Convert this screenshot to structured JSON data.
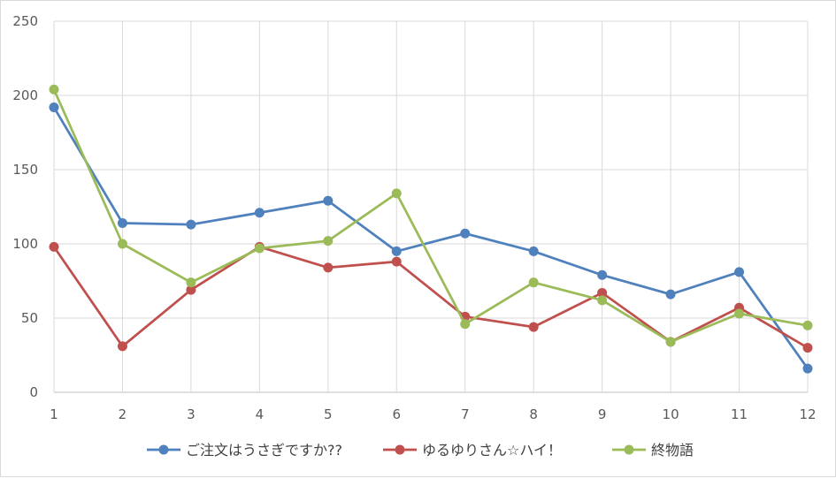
{
  "chart_data": {
    "type": "line",
    "title": "",
    "xlabel": "",
    "ylabel": "",
    "x": [
      1,
      2,
      3,
      4,
      5,
      6,
      7,
      8,
      9,
      10,
      11,
      12
    ],
    "ylim": [
      0,
      250
    ],
    "yticks": [
      0,
      50,
      100,
      150,
      200,
      250
    ],
    "grid": "both",
    "legend": "bottom",
    "series": [
      {
        "name": "ご注文はうさぎですか??",
        "color": "#4f81bd",
        "values": [
          192,
          114,
          113,
          121,
          129,
          95,
          107,
          95,
          79,
          66,
          81,
          16
        ]
      },
      {
        "name": "ゆるゆりさん☆ハイ！",
        "color": "#c0504d",
        "values": [
          98,
          31,
          69,
          98,
          84,
          88,
          51,
          44,
          67,
          34,
          57,
          30
        ]
      },
      {
        "name": "終物語",
        "color": "#9bbb59",
        "values": [
          204,
          100,
          74,
          97,
          102,
          134,
          46,
          74,
          62,
          34,
          53,
          45
        ]
      }
    ]
  }
}
